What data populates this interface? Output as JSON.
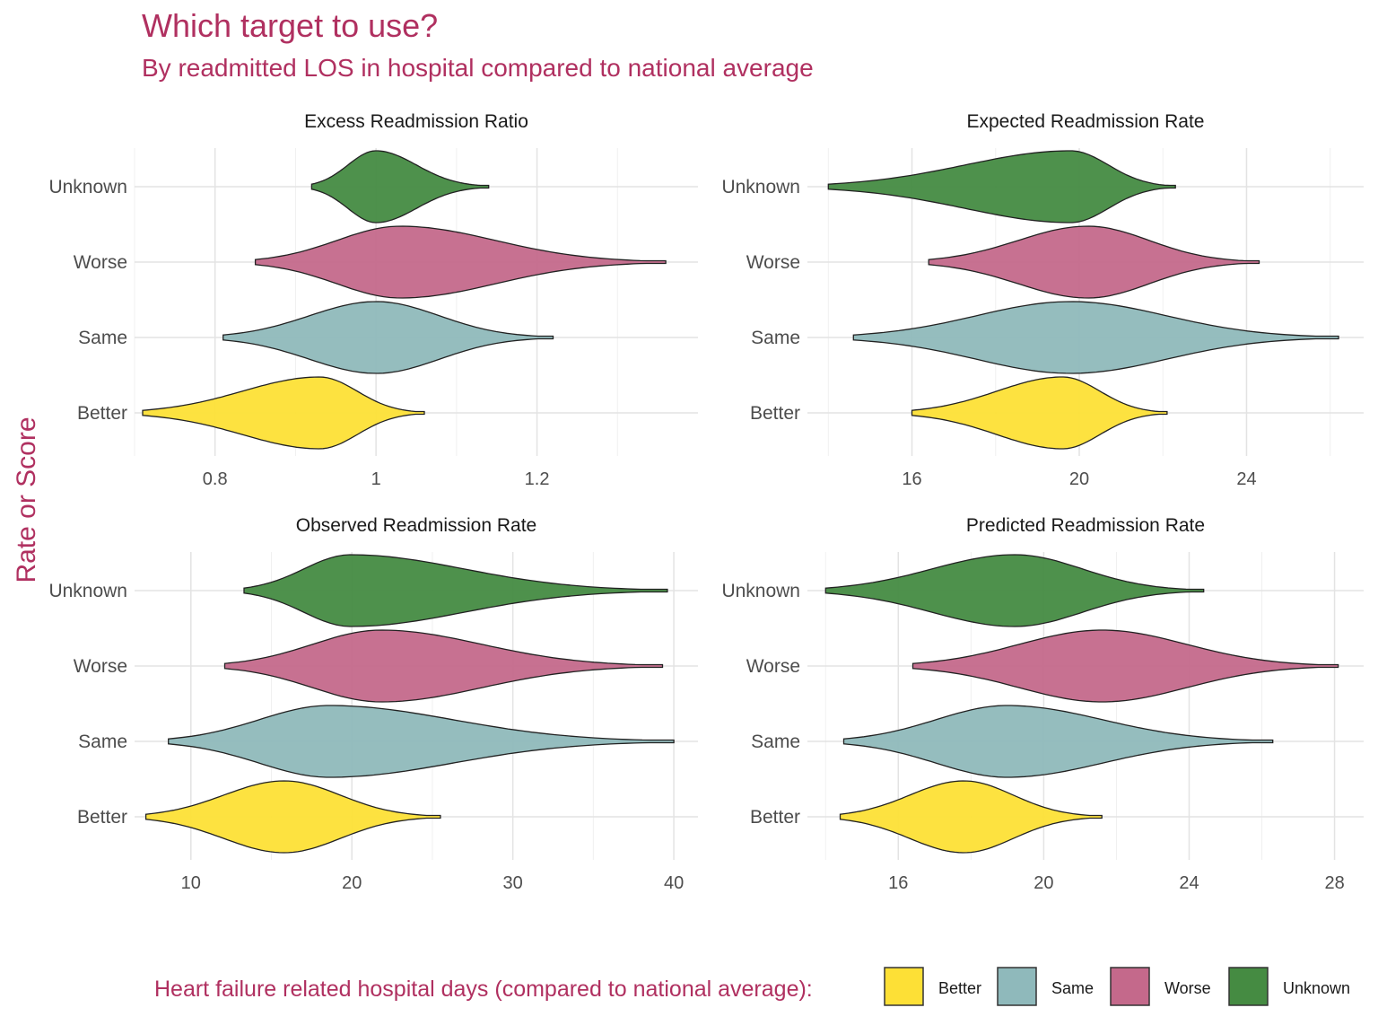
{
  "title": "Which target to use?",
  "subtitle": "By readmitted LOS in hospital compared to national average",
  "colors": {
    "Better": "#fde036",
    "Same": "#8fb9bb",
    "Worse": "#c4698b",
    "Unknown": "#458b42",
    "accent": "#b03060"
  },
  "legend": {
    "title": "Heart failure related hospital days (compared to national average):",
    "items": [
      "Better",
      "Same",
      "Worse",
      "Unknown"
    ]
  },
  "chart_data": [
    {
      "type": "violin",
      "title": "Excess Readmission Ratio",
      "ylabel": "Rate or Score",
      "categories": [
        "Better",
        "Same",
        "Worse",
        "Unknown"
      ],
      "xlim": [
        0.7,
        1.4
      ],
      "xticks": [
        0.8,
        1.0,
        1.2
      ],
      "series": [
        {
          "name": "Better",
          "min": 0.71,
          "max": 1.06,
          "peak": 0.93
        },
        {
          "name": "Same",
          "min": 0.81,
          "max": 1.22,
          "peak": 1.0
        },
        {
          "name": "Worse",
          "min": 0.85,
          "max": 1.36,
          "peak": 1.03
        },
        {
          "name": "Unknown",
          "min": 0.92,
          "max": 1.14,
          "peak": 1.0
        }
      ]
    },
    {
      "type": "violin",
      "title": "Expected Readmission Rate",
      "categories": [
        "Better",
        "Same",
        "Worse",
        "Unknown"
      ],
      "xlim": [
        13.5,
        26.8
      ],
      "xticks": [
        16,
        20,
        24
      ],
      "series": [
        {
          "name": "Better",
          "min": 16.0,
          "max": 22.1,
          "peak": 19.6
        },
        {
          "name": "Same",
          "min": 14.6,
          "max": 26.2,
          "peak": 19.8
        },
        {
          "name": "Worse",
          "min": 16.4,
          "max": 24.3,
          "peak": 20.2
        },
        {
          "name": "Unknown",
          "min": 14.0,
          "max": 22.3,
          "peak": 19.8
        }
      ]
    },
    {
      "type": "violin",
      "title": "Observed Readmission Rate",
      "categories": [
        "Better",
        "Same",
        "Worse",
        "Unknown"
      ],
      "xlim": [
        6.5,
        41.5
      ],
      "xticks": [
        10,
        20,
        30,
        40
      ],
      "series": [
        {
          "name": "Better",
          "min": 7.2,
          "max": 25.5,
          "peak": 15.8
        },
        {
          "name": "Same",
          "min": 8.6,
          "max": 40.0,
          "peak": 18.6
        },
        {
          "name": "Worse",
          "min": 12.1,
          "max": 39.3,
          "peak": 21.8
        },
        {
          "name": "Unknown",
          "min": 13.3,
          "max": 39.6,
          "peak": 19.9
        }
      ]
    },
    {
      "type": "violin",
      "title": "Predicted Readmission Rate",
      "categories": [
        "Better",
        "Same",
        "Worse",
        "Unknown"
      ],
      "xlim": [
        13.5,
        28.8
      ],
      "xticks": [
        16,
        20,
        24,
        28
      ],
      "series": [
        {
          "name": "Better",
          "min": 14.4,
          "max": 21.6,
          "peak": 17.8
        },
        {
          "name": "Same",
          "min": 14.5,
          "max": 26.3,
          "peak": 19.0
        },
        {
          "name": "Worse",
          "min": 16.4,
          "max": 28.1,
          "peak": 21.6
        },
        {
          "name": "Unknown",
          "min": 14.0,
          "max": 24.4,
          "peak": 19.2
        }
      ]
    }
  ]
}
